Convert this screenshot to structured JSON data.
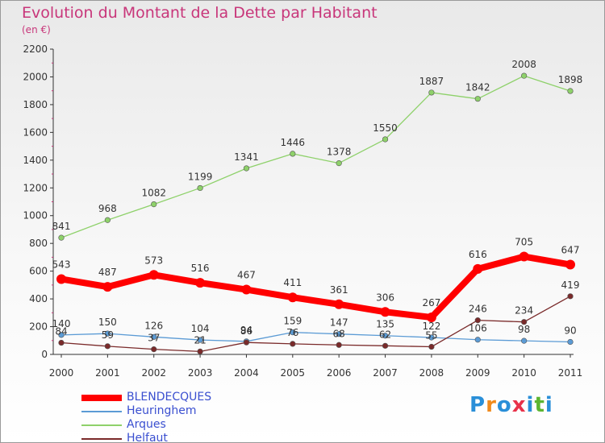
{
  "title": "Evolution du Montant de la Dette par Habitant",
  "unit": "(en €)",
  "brand": {
    "text": "Proxiti",
    "colors": [
      "#2a8fd8",
      "#f08a1c",
      "#2a8fd8",
      "#e8324a",
      "#2a8fd8",
      "#5cb531",
      "#2a8fd8"
    ]
  },
  "chart_data": {
    "type": "line",
    "title": "Evolution du Montant de la Dette par Habitant",
    "ylabel": "(en €)",
    "xlabel": "",
    "x": [
      "2000",
      "2001",
      "2002",
      "2003",
      "2004",
      "2005",
      "2006",
      "2007",
      "2008",
      "2009",
      "2010",
      "2011"
    ],
    "ylim": [
      0,
      2200
    ],
    "yticks": [
      "0",
      "200",
      "400",
      "600",
      "800",
      "1000",
      "1200",
      "1400",
      "1600",
      "1800",
      "2000",
      "2200"
    ],
    "grid": false,
    "legend_position": "bottom-left",
    "series": [
      {
        "name": "BLENDECQUES",
        "color": "#ff0000",
        "values": [
          543,
          487,
          573,
          516,
          467,
          411,
          361,
          306,
          267,
          616,
          705,
          647
        ],
        "labels": [
          "543",
          "487",
          "573",
          "516",
          "467",
          "411",
          "361",
          "306",
          "267",
          "616",
          "705",
          "647"
        ]
      },
      {
        "name": "Heuringhem",
        "color": "#5b9bd5",
        "values": [
          140,
          150,
          126,
          104,
          94,
          159,
          147,
          135,
          122,
          106,
          98,
          90
        ],
        "labels": [
          "140",
          "150",
          "126",
          "104",
          "94",
          "159",
          "147",
          "135",
          "122",
          "106",
          "98",
          "90"
        ]
      },
      {
        "name": "Arques",
        "color": "#8ed16a",
        "values": [
          841,
          968,
          1082,
          1199,
          1341,
          1446,
          1378,
          1550,
          1887,
          1842,
          2008,
          1898
        ],
        "labels": [
          "841",
          "968",
          "1082",
          "1199",
          "1341",
          "1446",
          "1378",
          "1550",
          "1887",
          "1842",
          "2008",
          "1898"
        ]
      },
      {
        "name": "Helfaut",
        "color": "#7a2a2a",
        "values": [
          84,
          59,
          37,
          21,
          86,
          76,
          68,
          62,
          55,
          246,
          234,
          419
        ],
        "labels": [
          "84",
          "59",
          "37",
          "21",
          "86",
          "76",
          "68",
          "62",
          "55",
          "246",
          "234",
          "419"
        ]
      }
    ]
  }
}
